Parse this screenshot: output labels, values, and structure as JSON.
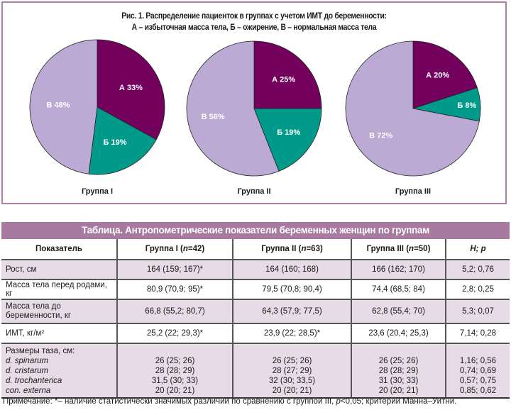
{
  "figure": {
    "title_line1": "Рис. 1. Распределение пациенток в группах с учетом ИМТ до беременности:",
    "title_line2": "А – избыточная масса тела, Б – ожирение, В – нормальная масса тела"
  },
  "chart_data": [
    {
      "type": "pie",
      "title": "Группа I",
      "categories": [
        "А",
        "Б",
        "В"
      ],
      "values": [
        33,
        19,
        48
      ],
      "labels": [
        "А 33%",
        "Б 19%",
        "В 48%"
      ],
      "colors": [
        "#72005c",
        "#009a8a",
        "#bcaad4"
      ]
    },
    {
      "type": "pie",
      "title": "Группа II",
      "categories": [
        "А",
        "Б",
        "В"
      ],
      "values": [
        25,
        19,
        56
      ],
      "labels": [
        "А 25%",
        "Б 19%",
        "В 56%"
      ],
      "colors": [
        "#72005c",
        "#009a8a",
        "#bcaad4"
      ]
    },
    {
      "type": "pie",
      "title": "Группа III",
      "categories": [
        "А",
        "Б",
        "В"
      ],
      "values": [
        20,
        8,
        72
      ],
      "labels": [
        "А 20%",
        "Б 8%",
        "В 72%"
      ],
      "colors": [
        "#72005c",
        "#009a8a",
        "#bcaad4"
      ]
    }
  ],
  "table": {
    "title": "Таблица. Антропометрические показатели беременных женщин по группам",
    "headers": {
      "c0": "Показатель",
      "c1_pre": "Группа I (",
      "c1_n": "n",
      "c1_post": "=42)",
      "c2_pre": "Группа II (",
      "c2_n": "n",
      "c2_post": "=63)",
      "c3_pre": "Группа III (",
      "c3_n": "n",
      "c3_post": "=50)",
      "c4": "H; p"
    },
    "rows": [
      {
        "label": "Рост, см",
        "g1": "164 (159; 167)*",
        "g2": "164 (160; 168)",
        "g3": "166 (162; 170)",
        "hp": "5,2; 0,76"
      },
      {
        "label": "Масса тела перед родами, кг",
        "g1": "80,9 (70,9; 95)*",
        "g2": "79,5 (70,8; 90,4)",
        "g3": "74,4 (68,5; 84)",
        "hp": "2,8; 0,25"
      },
      {
        "label_line1": "Масса тела до",
        "label_line2": "беременности, кг",
        "g1": "66,8 (55,2; 80,7)",
        "g2": "64,3 (57,9; 77,5)",
        "g3": "62,8 (55,4; 70)",
        "hp": "5,3; 0,07"
      },
      {
        "label": "ИМТ, кг/м²",
        "g1": "25,2 (22; 29,3)*",
        "g2": "23,9 (22; 28,5)*",
        "g3": "23,6 (20,4; 25,3)",
        "hp": "7,14; 0,28"
      }
    ],
    "pelvis": {
      "heading": "Размеры таза, см:",
      "items": [
        {
          "label": "d. spinarum",
          "g1": "26 (25; 26)",
          "g2": "26 (25; 26)",
          "g3": "26 (25; 26)",
          "hp": "1,16; 0,56"
        },
        {
          "label": "d. cristarum",
          "g1": "28 (28; 29)",
          "g2": "28 (27; 29)",
          "g3": "28 (28; 29)",
          "hp": "0,74; 0,69"
        },
        {
          "label": "d. trochanterica",
          "g1": "31,5 (30; 33)",
          "g2": "32 (30; 33,5)",
          "g3": "31 (30; 33)",
          "hp": "0,57; 0,75"
        },
        {
          "label": "con. externa",
          "g1": "20 (20; 21)",
          "g2": "20 (20; 21)",
          "g3": "20 (20; 21)",
          "hp": "0,85; 0,62"
        }
      ]
    },
    "note_pre": "Примечание: *– наличие статистически значимых различий по сравнению с группой III, ",
    "note_p": "p",
    "note_post": "<0,05; критерий Манна–Уитни."
  }
}
